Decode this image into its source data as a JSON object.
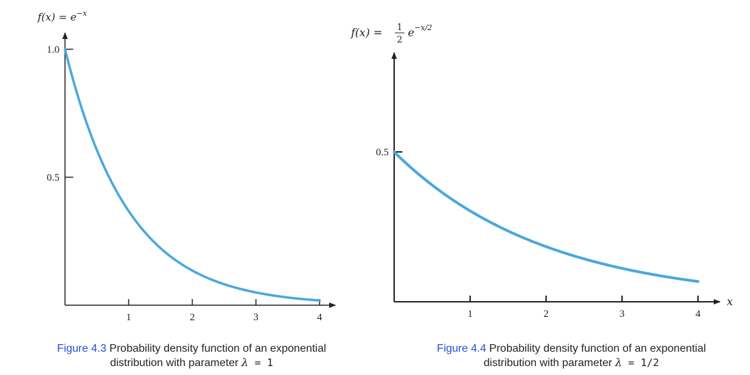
{
  "chart_data": [
    {
      "type": "line",
      "function_label_lhs": "f(x) = e",
      "function_label_exp": "−x",
      "x_ticks": [
        "1",
        "2",
        "3",
        "4"
      ],
      "y_ticks": [
        "0.5",
        "1.0"
      ],
      "xlim": [
        0,
        4.2
      ],
      "ylim": [
        0,
        1.0
      ],
      "grid": false,
      "rate": 1,
      "scale": 1,
      "x_end": 4,
      "curve_color": "#4aa8dc",
      "series": [
        {
          "x": [
            0,
            0.5,
            1,
            1.5,
            2,
            2.5,
            3,
            3.5,
            4
          ],
          "y": [
            1.0,
            0.61,
            0.37,
            0.22,
            0.14,
            0.08,
            0.05,
            0.03,
            0.02
          ]
        }
      ],
      "caption_id": "Figure 4.3",
      "caption_text": " Probability density function of an exponential",
      "caption_line2": "distribution with parameter ",
      "caption_lambda": "λ",
      "caption_value": " = 1"
    },
    {
      "type": "line",
      "function_label_lhs": "f(x) =",
      "function_label_num": "1",
      "function_label_den": "2",
      "function_label_e": "e",
      "function_label_exp": "−x/2",
      "x_axis_label": "x",
      "x_ticks": [
        "1",
        "2",
        "3",
        "4"
      ],
      "y_ticks": [
        "0.5"
      ],
      "xlim": [
        0,
        4.2
      ],
      "ylim": [
        0,
        0.5
      ],
      "grid": false,
      "rate": 0.5,
      "scale": 0.5,
      "x_end": 4,
      "curve_color": "#4aa8dc",
      "series": [
        {
          "x": [
            0,
            0.5,
            1,
            1.5,
            2,
            2.5,
            3,
            3.5,
            4
          ],
          "y": [
            0.5,
            0.39,
            0.3,
            0.24,
            0.18,
            0.14,
            0.11,
            0.09,
            0.07
          ]
        }
      ],
      "caption_id": "Figure 4.4",
      "caption_text": " Probability density function of an exponential",
      "caption_line2": "distribution with parameter ",
      "caption_lambda": "λ",
      "caption_value": " = 1/2"
    }
  ]
}
